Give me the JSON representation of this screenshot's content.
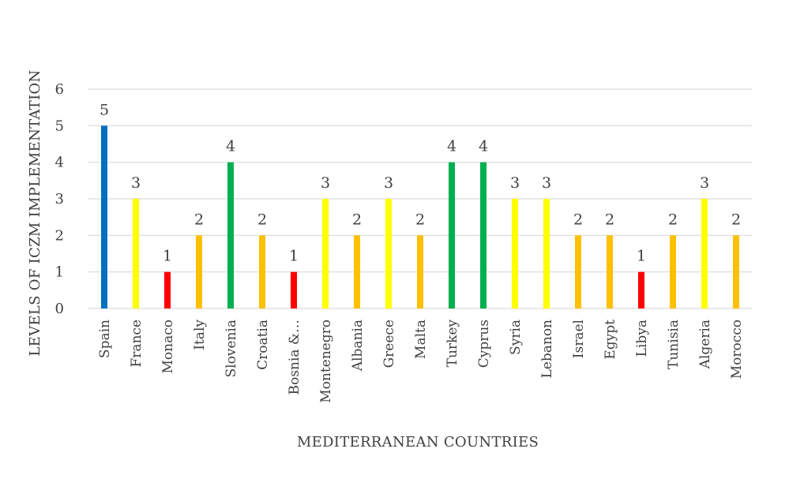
{
  "chart_data": {
    "type": "bar",
    "xlabel": "MEDITERRANEAN COUNTRIES",
    "ylabel": "LEVELS OF ICZM IMPLEMENTATION",
    "ylim": [
      0,
      6
    ],
    "yticks": [
      0,
      1,
      2,
      3,
      4,
      5,
      6
    ],
    "grid": true,
    "data_labels": true,
    "categories": [
      "Spain",
      "France",
      "Monaco",
      "Italy",
      "Slovenia",
      "Croatia",
      "Bosnia &…",
      "Montenegro",
      "Albania",
      "Greece",
      "Malta",
      "Turkey",
      "Cyprus",
      "Syria",
      "Lebanon",
      "Israel",
      "Egypt",
      "Libya",
      "Tunisia",
      "Algeria",
      "Morocco"
    ],
    "values": [
      5,
      3,
      1,
      2,
      4,
      2,
      1,
      3,
      2,
      3,
      2,
      4,
      4,
      3,
      3,
      2,
      2,
      1,
      2,
      3,
      2
    ],
    "level_colors": {
      "1": "#ff0000",
      "2": "#ffc000",
      "3": "#ffff00",
      "4": "#00b050",
      "5": "#0070c0"
    }
  }
}
